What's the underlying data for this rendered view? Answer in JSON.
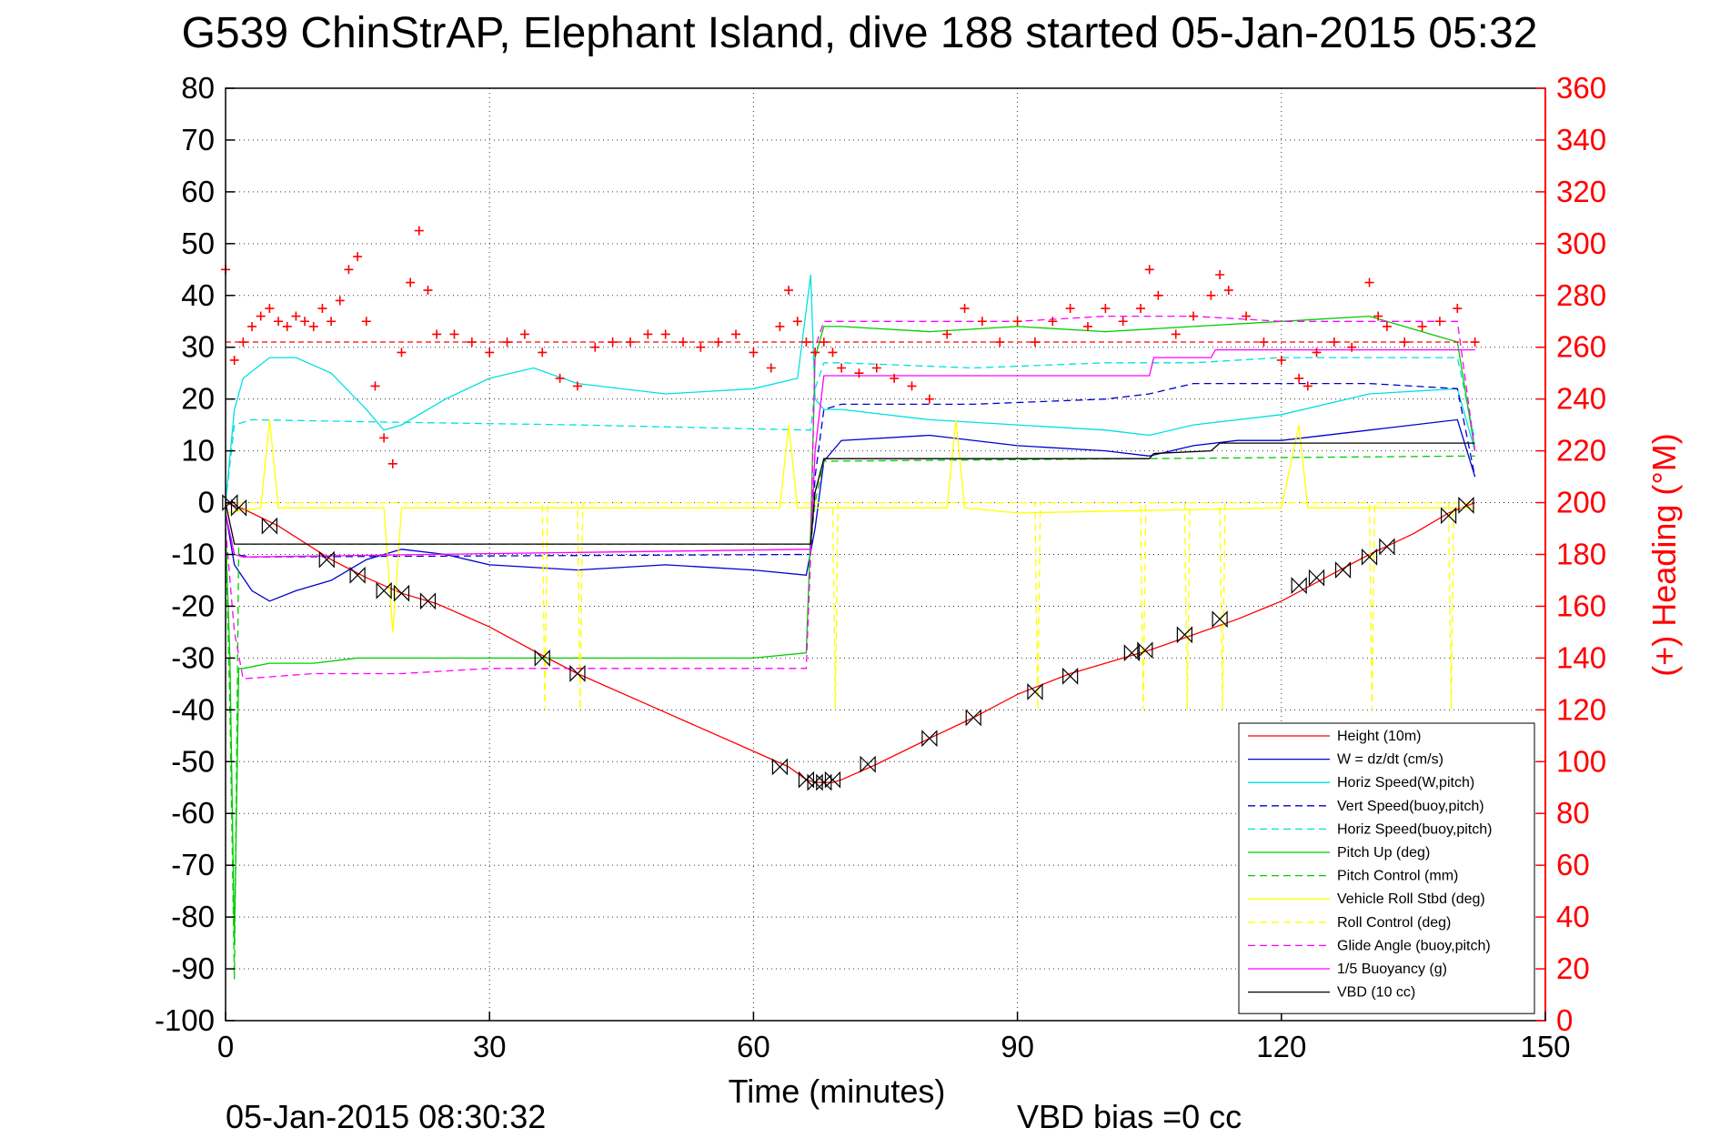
{
  "chart_data": {
    "type": "line",
    "title": "G539 ChinStrAP, Elephant Island, dive 188 started 05-Jan-2015 05:32",
    "xlabel": "Time (minutes)",
    "ylabel": "",
    "y2label": "(+) Heading (°M)",
    "xlim": [
      0,
      150
    ],
    "ylim": [
      -100,
      80
    ],
    "y2lim": [
      0,
      360
    ],
    "xticks": [
      0,
      30,
      60,
      90,
      120,
      150
    ],
    "yticks": [
      80,
      70,
      60,
      50,
      40,
      30,
      20,
      10,
      0,
      -10,
      -20,
      -30,
      -40,
      -50,
      -60,
      -70,
      -80,
      -90,
      -100
    ],
    "y2ticks": [
      360,
      340,
      320,
      300,
      280,
      260,
      240,
      220,
      200,
      180,
      160,
      140,
      120,
      100,
      80,
      60,
      40,
      20,
      0
    ],
    "grid": true,
    "legend_position": "bottom-right",
    "footer_left": "05-Jan-2015 08:30:32",
    "footer_center": "VBD bias =0 cc",
    "series": [
      {
        "name": "Height (10m)",
        "color": "#ff0000",
        "style": "solid",
        "x": [
          0,
          2,
          6,
          12,
          16,
          20,
          24,
          30,
          36,
          40,
          50,
          60,
          64,
          66,
          67,
          68,
          69,
          70,
          74,
          80,
          85,
          90,
          96,
          100,
          105,
          110,
          115,
          120,
          125,
          130,
          135,
          139,
          142
        ],
        "y": [
          0,
          -1.2,
          -4.5,
          -11,
          -14.5,
          -17.5,
          -19.5,
          -24,
          -29.5,
          -33,
          -40.5,
          -48,
          -51,
          -53.5,
          -54,
          -54,
          -54,
          -53.5,
          -50.5,
          -45.5,
          -41.5,
          -37,
          -33,
          -31,
          -28.5,
          -25.5,
          -22.5,
          -19,
          -14.5,
          -10,
          -6,
          -2,
          0
        ]
      },
      {
        "name": "W = dz/dt (cm/s)",
        "color": "#0000cc",
        "style": "solid",
        "x": [
          0,
          1,
          3,
          5,
          8,
          12,
          16,
          20,
          25,
          30,
          40,
          50,
          60,
          66,
          67,
          68,
          70,
          80,
          90,
          100,
          105,
          110,
          115,
          120,
          130,
          140,
          142
        ],
        "y": [
          -2,
          -12,
          -17,
          -19,
          -17,
          -15,
          -11,
          -9,
          -10,
          -12,
          -13,
          -12,
          -13,
          -14,
          -5,
          8,
          12,
          13,
          11,
          10,
          9,
          11,
          12,
          12,
          14,
          16,
          5
        ]
      },
      {
        "name": "Horiz Speed(W,pitch)",
        "color": "#00e0e0",
        "style": "solid",
        "x": [
          0,
          1,
          2,
          5,
          8,
          12,
          16,
          18,
          20,
          25,
          30,
          35,
          40,
          50,
          60,
          65,
          66.5,
          67,
          68,
          70,
          80,
          90,
          100,
          105,
          110,
          120,
          130,
          140,
          142
        ],
        "y": [
          0,
          18,
          24,
          28,
          28,
          25,
          18,
          14,
          15,
          20,
          24,
          26,
          23,
          21,
          22,
          24,
          44,
          20,
          18,
          18,
          16,
          15,
          14,
          13,
          15,
          17,
          21,
          22,
          10
        ]
      },
      {
        "name": "Vert Speed(buoy,pitch)",
        "color": "#0000cc",
        "style": "dashed",
        "x": [
          0,
          1,
          3,
          66.5,
          67,
          68,
          70,
          85,
          100,
          105,
          110,
          120,
          130,
          140,
          142
        ],
        "y": [
          -2,
          -10,
          -10.5,
          -10,
          5,
          18,
          19,
          19,
          20,
          21,
          23,
          23,
          23,
          22,
          5
        ]
      },
      {
        "name": "Horiz Speed(buoy,pitch)",
        "color": "#00e0e0",
        "style": "dashed",
        "x": [
          0,
          1,
          3,
          20,
          40,
          66.5,
          67,
          68,
          70,
          85,
          100,
          105,
          110,
          120,
          130,
          140,
          142
        ],
        "y": [
          0,
          15,
          16,
          15.5,
          15,
          14,
          22,
          27,
          27,
          26,
          27,
          27,
          27,
          28,
          28,
          28,
          12
        ]
      },
      {
        "name": "Pitch Up (deg)",
        "color": "#00cc00",
        "style": "solid",
        "x": [
          0,
          0.5,
          1,
          1.5,
          2,
          5,
          10,
          15,
          20,
          30,
          40,
          50,
          60,
          66,
          66.5,
          67,
          68,
          70,
          80,
          90,
          100,
          110,
          120,
          130,
          140,
          142
        ],
        "y": [
          -5,
          -30,
          -85,
          -32,
          -32,
          -31,
          -31,
          -30,
          -30,
          -30,
          -30,
          -30,
          -30,
          -29,
          -5,
          28,
          34,
          34,
          33,
          34,
          33,
          34,
          35,
          36,
          31,
          10
        ]
      },
      {
        "name": "Pitch Control (mm)",
        "color": "#00cc00",
        "style": "dashed",
        "x": [
          0,
          0.5,
          1,
          1.5,
          2,
          66.5,
          67,
          68,
          142
        ],
        "y": [
          -5,
          -40,
          -92,
          -8,
          -8,
          -8,
          0,
          8,
          9
        ]
      },
      {
        "name": "Vehicle Roll Stbd (deg)",
        "color": "#ffff00",
        "style": "solid",
        "x": [
          0,
          4,
          5,
          6,
          18,
          19,
          20,
          60,
          63,
          64,
          65,
          67,
          68,
          82,
          83,
          84,
          90,
          120,
          122,
          123,
          124,
          142
        ],
        "y": [
          -2,
          -1,
          16,
          -1,
          -1,
          -25,
          -1,
          -1,
          -1,
          15,
          -1,
          -1,
          -1,
          -1,
          16,
          -1,
          -2,
          -1,
          15,
          -1,
          -1,
          -1
        ]
      },
      {
        "name": "Roll Control (deg)",
        "color": "#ffff00",
        "style": "dashed",
        "x": [
          0,
          36,
          36.3,
          36.6,
          40,
          40.3,
          40.6,
          67,
          69,
          69.3,
          69.6,
          92,
          92.3,
          92.6,
          104,
          104.3,
          104.6,
          109,
          109.3,
          109.6,
          113,
          113.3,
          113.6,
          130,
          130.3,
          130.6,
          139,
          139.3,
          139.6,
          142
        ],
        "y": [
          0,
          0,
          -40,
          0,
          0,
          -40,
          0,
          0,
          0,
          -40,
          0,
          0,
          -40,
          0,
          0,
          -40,
          0,
          0,
          -40,
          0,
          0,
          -40,
          0,
          0,
          -40,
          0,
          0,
          -40,
          0,
          0
        ]
      },
      {
        "name": "Glide Angle (buoy,pitch)",
        "color": "#ff00ff",
        "style": "dashed",
        "x": [
          0,
          1,
          2,
          10,
          20,
          30,
          40,
          50,
          60,
          66,
          66.5,
          67,
          68,
          70,
          80,
          90,
          100,
          110,
          120,
          130,
          140,
          142
        ],
        "y": [
          -5,
          -25,
          -34,
          -33,
          -33,
          -32,
          -32,
          -32,
          -32,
          -32,
          -10,
          30,
          35,
          35,
          35,
          35,
          36,
          36,
          35,
          35,
          35,
          10
        ]
      },
      {
        "name": "1/5 Buoyancy (g)",
        "color": "#ff00ff",
        "style": "solid",
        "x": [
          0,
          1,
          2,
          66.5,
          67,
          68,
          105,
          105.5,
          112,
          112.5,
          142
        ],
        "y": [
          -2,
          -10,
          -10.5,
          -9,
          10,
          24.5,
          24.5,
          28,
          28,
          29.5,
          29.5
        ]
      },
      {
        "name": "VBD (10 cc)",
        "color": "#000000",
        "style": "solid",
        "x": [
          0,
          1,
          1.5,
          66.5,
          67,
          68,
          105,
          105.5,
          112,
          113,
          142
        ],
        "y": [
          0,
          -8,
          -8,
          -8,
          2,
          8.5,
          8.5,
          9.5,
          10,
          11.5,
          11.5
        ]
      }
    ],
    "heading_series": {
      "name": "(+) Heading (°M)",
      "color": "#ff0000",
      "marker": "+",
      "reference_line": 262,
      "x": [
        0,
        1,
        2,
        3,
        4,
        5,
        6,
        7,
        8,
        9,
        10,
        11,
        12,
        13,
        14,
        15,
        16,
        17,
        18,
        19,
        20,
        21,
        22,
        23,
        24,
        26,
        28,
        30,
        32,
        34,
        36,
        38,
        40,
        42,
        44,
        46,
        48,
        50,
        52,
        54,
        56,
        58,
        60,
        62,
        63,
        64,
        65,
        66,
        67,
        68,
        69,
        70,
        72,
        74,
        76,
        78,
        80,
        82,
        84,
        86,
        88,
        90,
        92,
        94,
        96,
        98,
        100,
        102,
        104,
        105,
        106,
        108,
        110,
        112,
        113,
        114,
        116,
        118,
        120,
        122,
        123,
        124,
        126,
        128,
        130,
        131,
        132,
        134,
        136,
        138,
        140,
        142
      ],
      "y": [
        290,
        255,
        262,
        268,
        272,
        275,
        270,
        268,
        272,
        270,
        268,
        275,
        270,
        278,
        290,
        295,
        270,
        245,
        225,
        215,
        258,
        285,
        305,
        282,
        265,
        265,
        262,
        258,
        262,
        265,
        258,
        248,
        245,
        260,
        262,
        262,
        265,
        265,
        262,
        260,
        262,
        265,
        258,
        252,
        268,
        282,
        270,
        262,
        258,
        262,
        258,
        252,
        250,
        252,
        248,
        245,
        240,
        265,
        275,
        270,
        262,
        270,
        262,
        270,
        275,
        268,
        275,
        270,
        275,
        290,
        280,
        265,
        272,
        280,
        288,
        282,
        272,
        262,
        255,
        248,
        245,
        258,
        262,
        260,
        285,
        272,
        268,
        262,
        268,
        270,
        275,
        262
      ]
    },
    "turn_markers": {
      "marker": "triangles",
      "color": "#000000",
      "x": [
        0.5,
        1.5,
        5,
        11.5,
        15,
        18,
        20,
        23,
        36,
        40,
        63,
        66,
        67,
        68,
        69,
        73,
        80,
        85,
        92,
        96,
        103,
        104.5,
        109,
        113,
        122,
        124,
        127,
        130,
        132,
        139,
        141
      ],
      "y": [
        0,
        -1,
        -4.5,
        -11,
        -14,
        -17,
        -17.5,
        -19,
        -30,
        -33,
        -51,
        -53.5,
        -54,
        -54,
        -53.5,
        -50.5,
        -45.5,
        -41.5,
        -36.5,
        -33.5,
        -29,
        -28.5,
        -25.5,
        -22.5,
        -16,
        -14.5,
        -13,
        -10.5,
        -8.5,
        -2.5,
        -0.5
      ]
    }
  }
}
